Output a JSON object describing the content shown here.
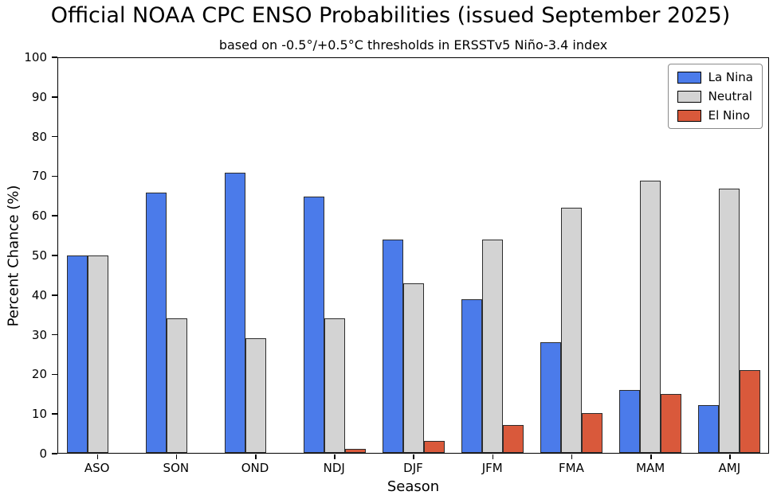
{
  "title": "Official NOAA CPC ENSO Probabilities (issued September 2025)",
  "subtitle": "based on -0.5°/+0.5°C thresholds in ERSSTv5 Niño-3.4 index",
  "chart_data": {
    "type": "bar",
    "title": "Official NOAA CPC ENSO Probabilities (issued September 2025)",
    "subtitle": "based on -0.5°/+0.5°C thresholds in ERSSTv5 Niño-3.4 index",
    "categories": [
      "ASO",
      "SON",
      "OND",
      "NDJ",
      "DJF",
      "JFM",
      "FMA",
      "MAM",
      "AMJ"
    ],
    "series": [
      {
        "name": "La Nina",
        "color": "#4b7bea",
        "values": [
          50,
          66,
          71,
          65,
          54,
          39,
          28,
          16,
          12
        ]
      },
      {
        "name": "Neutral",
        "color": "#d3d3d3",
        "values": [
          50,
          34,
          29,
          34,
          43,
          54,
          62,
          69,
          67
        ]
      },
      {
        "name": "El Nino",
        "color": "#d9593b",
        "values": [
          0,
          0,
          0,
          1,
          3,
          7,
          10,
          15,
          21
        ]
      }
    ],
    "xlabel": "Season",
    "ylabel": "Percent Chance (%)",
    "ylim": [
      0,
      100
    ],
    "yticks": [
      0,
      10,
      20,
      30,
      40,
      50,
      60,
      70,
      80,
      90,
      100
    ],
    "legend_position": "top-right",
    "grid": false
  }
}
